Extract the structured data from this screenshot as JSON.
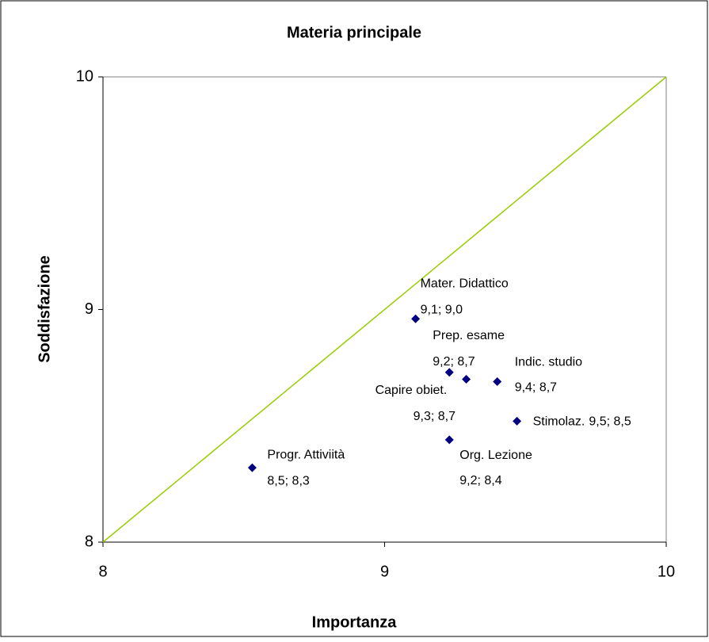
{
  "chart_data": {
    "type": "scatter",
    "title": "Materia principale",
    "xlabel": "Importanza",
    "ylabel": "Soddisfazione",
    "xlim": [
      8,
      10
    ],
    "xticks": [
      8,
      9,
      10
    ],
    "ylim": [
      8,
      10
    ],
    "yticks": [
      8,
      9,
      10
    ],
    "color": "#000080",
    "reference_line": {
      "x": [
        8,
        10
      ],
      "y": [
        8,
        10
      ],
      "color": "#99cc00"
    },
    "points": [
      {
        "label": "Mater. Didattico",
        "x": 9.11,
        "y": 8.96,
        "value_label": "9,1; 9,0"
      },
      {
        "label": "Prep. esame",
        "x": 9.23,
        "y": 8.73,
        "value_label": "9,2; 8,7"
      },
      {
        "label": "Capire obiet.",
        "x": 9.29,
        "y": 8.7,
        "value_label": "9,3; 8,7"
      },
      {
        "label": "Indic. studio",
        "x": 9.4,
        "y": 8.69,
        "value_label": "9,4; 8,7"
      },
      {
        "label": "Stimolaz.",
        "x": 9.47,
        "y": 8.52,
        "value_label": "9,5; 8,5"
      },
      {
        "label": "Org. Lezione",
        "x": 9.23,
        "y": 8.44,
        "value_label": "9,2; 8,4"
      },
      {
        "label": "Progr. Attiviità",
        "x": 8.53,
        "y": 8.32,
        "value_label": "8,5; 8,3"
      }
    ]
  }
}
